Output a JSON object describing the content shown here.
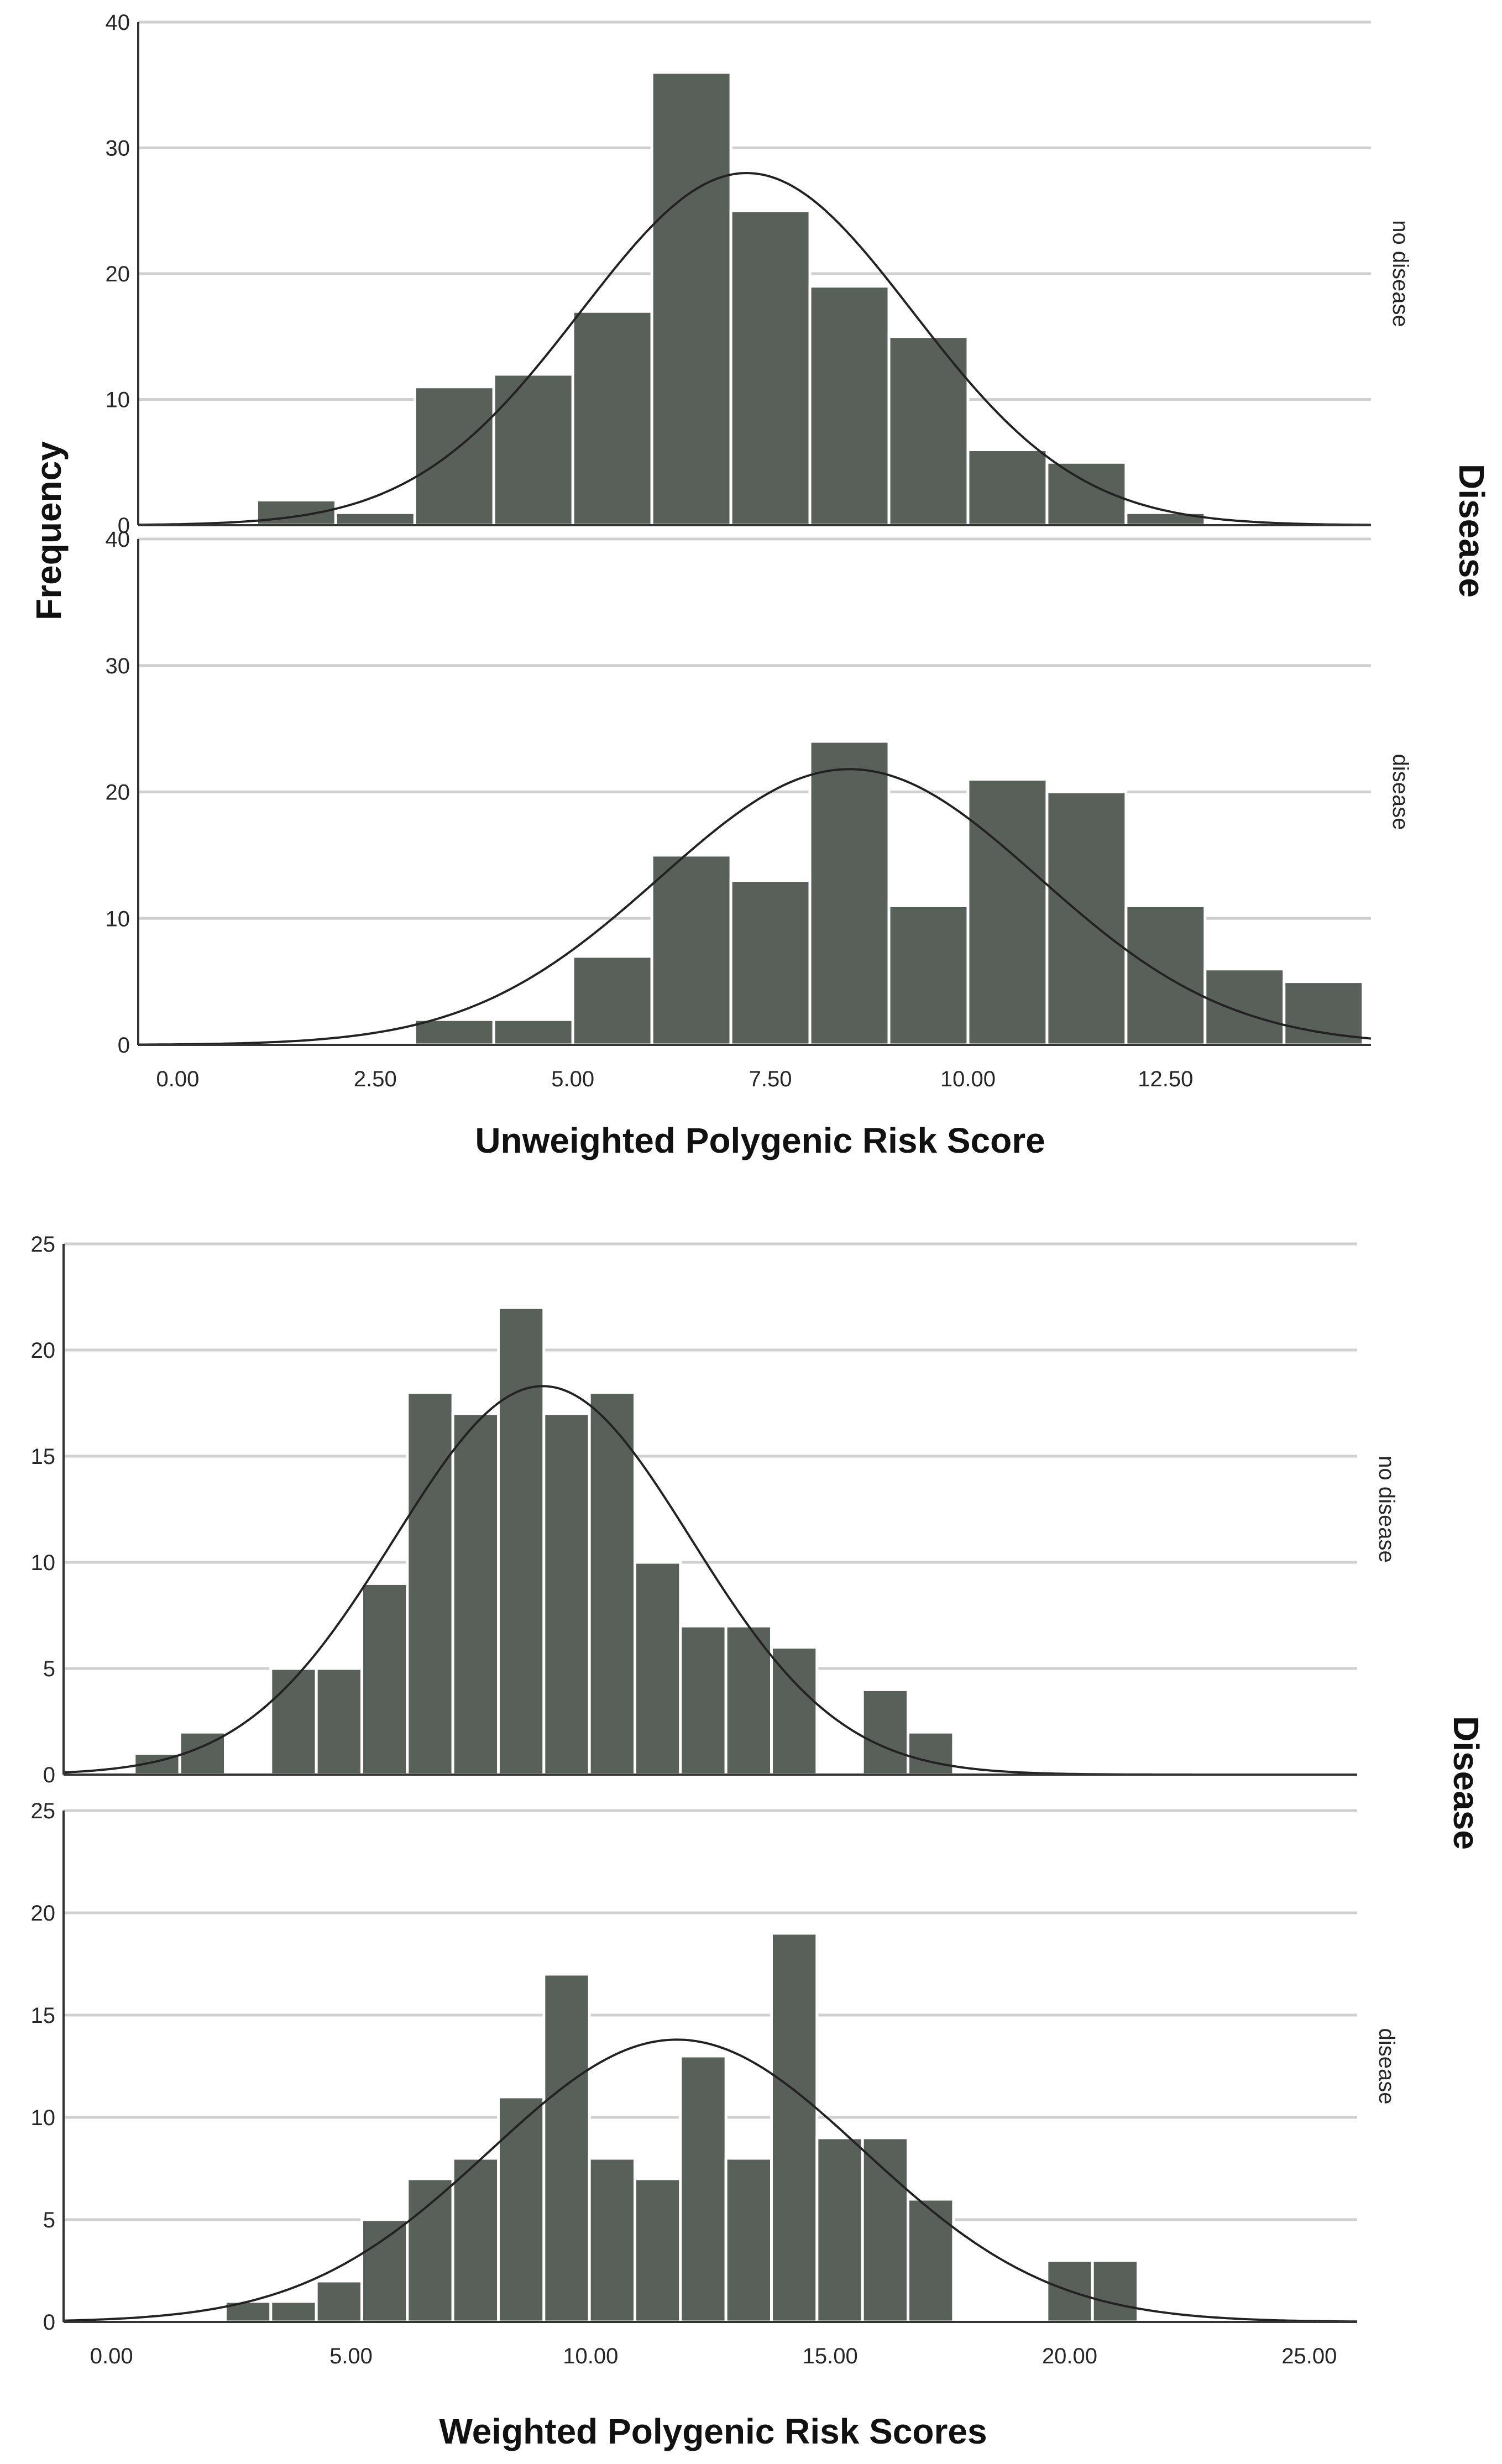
{
  "chart_data": [
    {
      "type": "bar",
      "title": "",
      "xlabel": "Unweighted Polygenic Risk Score",
      "ylabel": "Frequency",
      "facet_label": "Disease",
      "x_ticks": [
        "0.00",
        "2.50",
        "5.00",
        "7.50",
        "10.00",
        "12.50"
      ],
      "xlim": [
        -0.5,
        15.1
      ],
      "ylim": [
        0,
        40
      ],
      "y_ticks": [
        "0",
        "10",
        "20",
        "30",
        "40"
      ],
      "bin_width": 1.0,
      "panels": [
        {
          "name": "no disease",
          "bins": [
            [
              1.5,
              2
            ],
            [
              2.5,
              1
            ],
            [
              3.5,
              11
            ],
            [
              4.5,
              12
            ],
            [
              5.5,
              17
            ],
            [
              6.5,
              36
            ],
            [
              7.5,
              25
            ],
            [
              8.5,
              19
            ],
            [
              9.5,
              15
            ],
            [
              10.5,
              6
            ],
            [
              11.5,
              5
            ],
            [
              12.5,
              1
            ]
          ],
          "normal_curve": {
            "mean": 7.2,
            "sd": 2.1,
            "peak": 28
          }
        },
        {
          "name": "disease",
          "bins": [
            [
              3.5,
              2
            ],
            [
              4.5,
              2
            ],
            [
              5.5,
              7
            ],
            [
              6.5,
              15
            ],
            [
              7.5,
              13
            ],
            [
              8.5,
              24
            ],
            [
              9.5,
              11
            ],
            [
              10.5,
              21
            ],
            [
              11.5,
              20
            ],
            [
              12.5,
              11
            ],
            [
              13.5,
              6
            ],
            [
              14.5,
              5
            ]
          ],
          "normal_curve": {
            "mean": 8.5,
            "sd": 2.4,
            "peak": 21.8
          }
        }
      ]
    },
    {
      "type": "bar",
      "title": "",
      "xlabel": "Weighted Polygenic Risk Scores",
      "ylabel": "",
      "facet_label": "Disease",
      "x_ticks": [
        "0.00",
        "5.00",
        "10.00",
        "15.00",
        "20.00",
        "25.00"
      ],
      "xlim": [
        -1.0,
        26.0
      ],
      "ylim": [
        0,
        25
      ],
      "y_ticks": [
        "0",
        "5",
        "10",
        "15",
        "20",
        "25"
      ],
      "bin_width": 0.95,
      "panels": [
        {
          "name": "no disease",
          "bins": [
            [
              0.95,
              1
            ],
            [
              1.9,
              2
            ],
            [
              3.8,
              5
            ],
            [
              4.75,
              5
            ],
            [
              5.7,
              9
            ],
            [
              6.65,
              18
            ],
            [
              7.6,
              17
            ],
            [
              8.55,
              22
            ],
            [
              9.5,
              17
            ],
            [
              10.45,
              18
            ],
            [
              11.4,
              10
            ],
            [
              12.35,
              7
            ],
            [
              13.3,
              7
            ],
            [
              14.25,
              6
            ],
            [
              16.15,
              4
            ],
            [
              17.1,
              2
            ]
          ],
          "normal_curve": {
            "mean": 9.0,
            "sd": 3.1,
            "peak": 18.3
          }
        },
        {
          "name": "disease",
          "bins": [
            [
              2.85,
              1
            ],
            [
              3.8,
              1
            ],
            [
              4.75,
              2
            ],
            [
              5.7,
              5
            ],
            [
              6.65,
              7
            ],
            [
              7.6,
              8
            ],
            [
              8.55,
              11
            ],
            [
              9.5,
              17
            ],
            [
              10.45,
              8
            ],
            [
              11.4,
              7
            ],
            [
              12.35,
              13
            ],
            [
              13.3,
              8
            ],
            [
              14.25,
              19
            ],
            [
              15.2,
              9
            ],
            [
              16.15,
              9
            ],
            [
              17.1,
              6
            ],
            [
              20.0,
              3
            ],
            [
              20.95,
              3
            ]
          ],
          "normal_curve": {
            "mean": 11.8,
            "sd": 3.9,
            "peak": 13.8
          }
        }
      ]
    }
  ]
}
